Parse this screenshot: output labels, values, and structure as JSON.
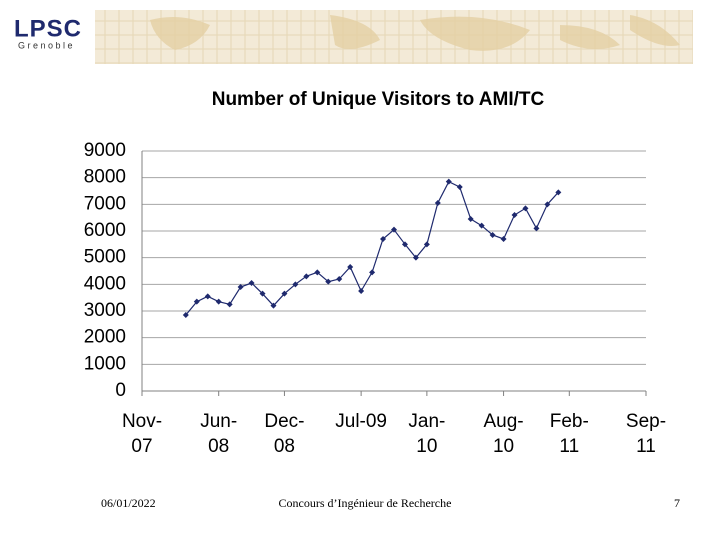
{
  "header": {
    "logo": "LPSC",
    "logo_city": "Grenoble"
  },
  "chart_data": {
    "type": "line",
    "title": "Number of Unique Visitors to AMI/TC",
    "x": [
      "Mar-08",
      "Apr-08",
      "May-08",
      "Jun-08",
      "Jul-08",
      "Aug-08",
      "Sep-08",
      "Oct-08",
      "Nov-08",
      "Dec-08",
      "Jan-09",
      "Feb-09",
      "Mar-09",
      "Apr-09",
      "May-09",
      "Jun-09",
      "Jul-09",
      "Aug-09",
      "Sep-09",
      "Oct-09",
      "Nov-09",
      "Dec-09",
      "Jan-10",
      "Feb-10",
      "Mar-10",
      "Apr-10",
      "May-10",
      "Jun-10",
      "Jul-10",
      "Aug-10",
      "Sep-10",
      "Oct-10",
      "Nov-10",
      "Dec-10",
      "Jan-11"
    ],
    "series": [
      {
        "name": "Unique Visitors",
        "color": "#1f2a6e",
        "values": [
          2850,
          3350,
          3550,
          3350,
          3250,
          3900,
          4050,
          3650,
          3200,
          3650,
          4000,
          4300,
          4450,
          4100,
          4200,
          4650,
          3750,
          4450,
          5700,
          6050,
          5500,
          5000,
          5500,
          7050,
          7850,
          7650,
          6450,
          6200,
          5850,
          5700,
          6600,
          6850,
          6100,
          7000,
          7450
        ]
      }
    ],
    "xlim": [
      "Nov-07",
      "Sep-11"
    ],
    "xticks": [
      "Nov-07",
      "Jun-08",
      "Dec-08",
      "Jul-09",
      "Jan-10",
      "Aug-10",
      "Feb-11",
      "Sep-11"
    ],
    "ylim": [
      0,
      9000
    ],
    "yticks": [
      0,
      1000,
      2000,
      3000,
      4000,
      5000,
      6000,
      7000,
      8000,
      9000
    ],
    "grid": true
  },
  "footer": {
    "date": "06/01/2022",
    "center": "Concours d’Ingénieur de Recherche",
    "page": "7"
  }
}
